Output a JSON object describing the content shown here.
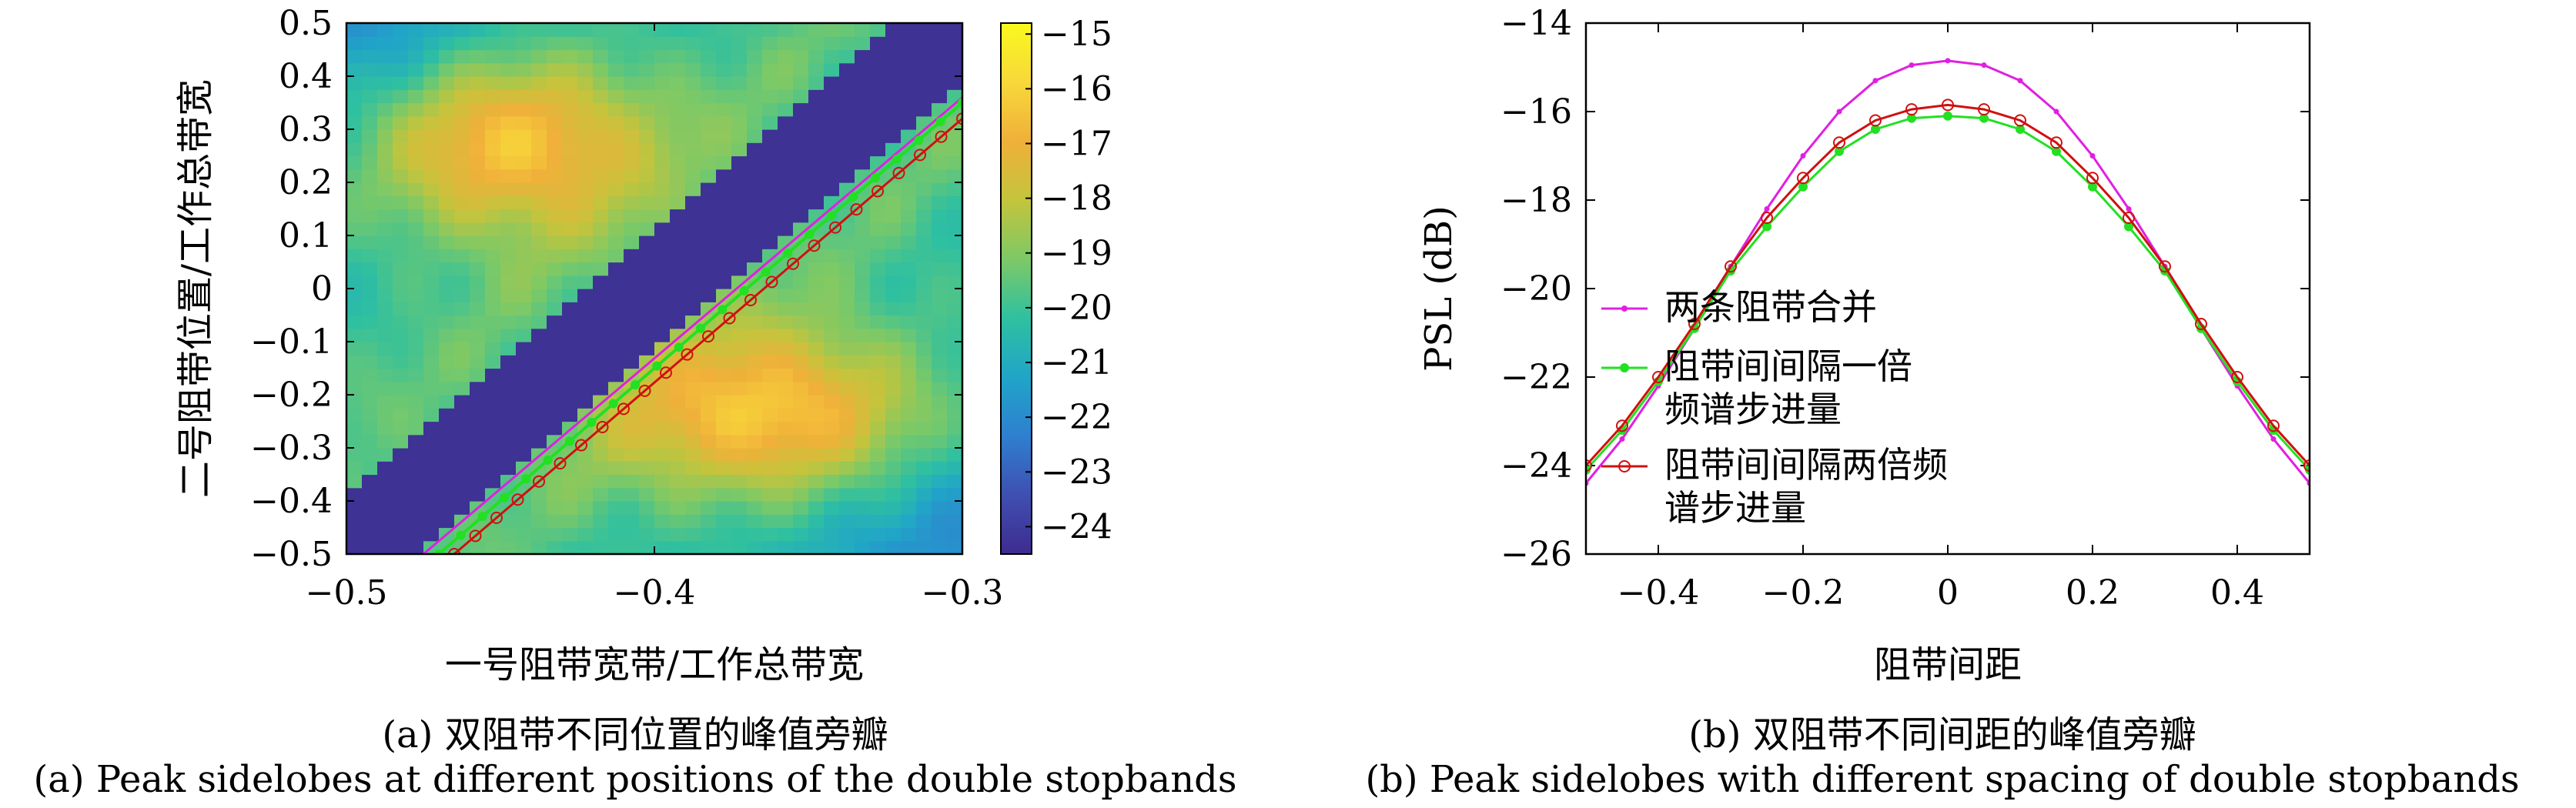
{
  "chart_data": [
    {
      "type": "heatmap",
      "title": "",
      "xlabel": "一号阻带宽带/工作总带宽",
      "ylabel": "二号阻带位置/工作总带宽",
      "xlim": [
        -0.5,
        -0.3
      ],
      "ylim": [
        -0.5,
        0.5
      ],
      "xticks": [
        -0.5,
        -0.4,
        -0.3
      ],
      "yticks": [
        -0.5,
        -0.4,
        -0.3,
        -0.2,
        -0.1,
        0,
        0.1,
        0.2,
        0.3,
        0.4,
        0.5
      ],
      "colorbar": {
        "min": -24.5,
        "max": -14.8,
        "ticks": [
          -15,
          -16,
          -17,
          -18,
          -19,
          -20,
          -21,
          -22,
          -23,
          -24
        ]
      },
      "colormap": [
        "#3e2c8f",
        "#3f4fb1",
        "#2f7fd0",
        "#20a5c8",
        "#2fc0a0",
        "#7dc966",
        "#c4c43c",
        "#f0b03a",
        "#f8d83a",
        "#f9f91d"
      ],
      "features": {
        "low_band": "diagonal stripe from (-0.5,-0.5) to (-0.3,0.5) with value about -24.3",
        "high_lobes": "yellow-orange regions near (-0.45,0.3) and (-0.35,-0.25) up to about -16"
      },
      "overlay_series": [
        {
          "color": "#e020e0",
          "marker": "none",
          "x": [
            -0.475,
            -0.3
          ],
          "y": [
            -0.5,
            0.36
          ]
        },
        {
          "color": "#22e022",
          "marker": "dot",
          "x": [
            -0.47,
            -0.3
          ],
          "y": [
            -0.5,
            0.35
          ]
        },
        {
          "color": "#d01010",
          "marker": "circle",
          "x": [
            -0.465,
            -0.3
          ],
          "y": [
            -0.5,
            0.32
          ]
        }
      ],
      "caption_zh": "(a) 双阻带不同位置的峰值旁瓣",
      "caption_en": "(a) Peak sidelobes at different positions of the double stopbands"
    },
    {
      "type": "line",
      "title": "",
      "xlabel": "阻带间距",
      "ylabel": "PSL (dB)",
      "xlim": [
        -0.5,
        0.5
      ],
      "ylim": [
        -26,
        -14
      ],
      "xticks": [
        -0.4,
        -0.2,
        0,
        0.2,
        0.4
      ],
      "yticks": [
        -14,
        -16,
        -18,
        -20,
        -22,
        -24,
        -26
      ],
      "x": [
        -0.5,
        -0.45,
        -0.4,
        -0.35,
        -0.3,
        -0.25,
        -0.2,
        -0.15,
        -0.1,
        -0.05,
        0,
        0.05,
        0.1,
        0.15,
        0.2,
        0.25,
        0.3,
        0.35,
        0.4,
        0.45,
        0.5
      ],
      "series": [
        {
          "name": "两条阻带合并",
          "color": "#e020e0",
          "marker": "dot",
          "values": [
            -24.4,
            -23.4,
            -22.2,
            -20.9,
            -19.5,
            -18.2,
            -17.0,
            -16.0,
            -15.3,
            -14.95,
            -14.85,
            -14.95,
            -15.3,
            -16.0,
            -17.0,
            -18.2,
            -19.5,
            -20.9,
            -22.2,
            -23.4,
            -24.4
          ]
        },
        {
          "name": "阻带间间隔一倍频谱步进量",
          "color": "#22e022",
          "marker": "asterisk",
          "values": [
            -24.1,
            -23.2,
            -22.1,
            -20.9,
            -19.6,
            -18.6,
            -17.7,
            -16.9,
            -16.4,
            -16.15,
            -16.1,
            -16.15,
            -16.4,
            -16.9,
            -17.7,
            -18.6,
            -19.6,
            -20.9,
            -22.1,
            -23.2,
            -24.1
          ]
        },
        {
          "name": "阻带间间隔两倍频谱步进量",
          "color": "#d01010",
          "marker": "circle",
          "values": [
            -24.0,
            -23.1,
            -22.0,
            -20.8,
            -19.5,
            -18.4,
            -17.5,
            -16.7,
            -16.2,
            -15.95,
            -15.85,
            -15.95,
            -16.2,
            -16.7,
            -17.5,
            -18.4,
            -19.5,
            -20.8,
            -22.0,
            -23.1,
            -24.0
          ]
        }
      ],
      "legend": [
        {
          "series": 0,
          "lines": [
            "两条阻带合并"
          ]
        },
        {
          "series": 1,
          "lines": [
            "阻带间间隔一倍",
            "频谱步进量"
          ]
        },
        {
          "series": 2,
          "lines": [
            "阻带间间隔两倍频",
            "谱步进量"
          ]
        }
      ],
      "legend_position": "center-left",
      "caption_zh": "(b) 双阻带不同间距的峰值旁瓣",
      "caption_en": "(b) Peak sidelobes with different spacing of double stopbands"
    }
  ]
}
